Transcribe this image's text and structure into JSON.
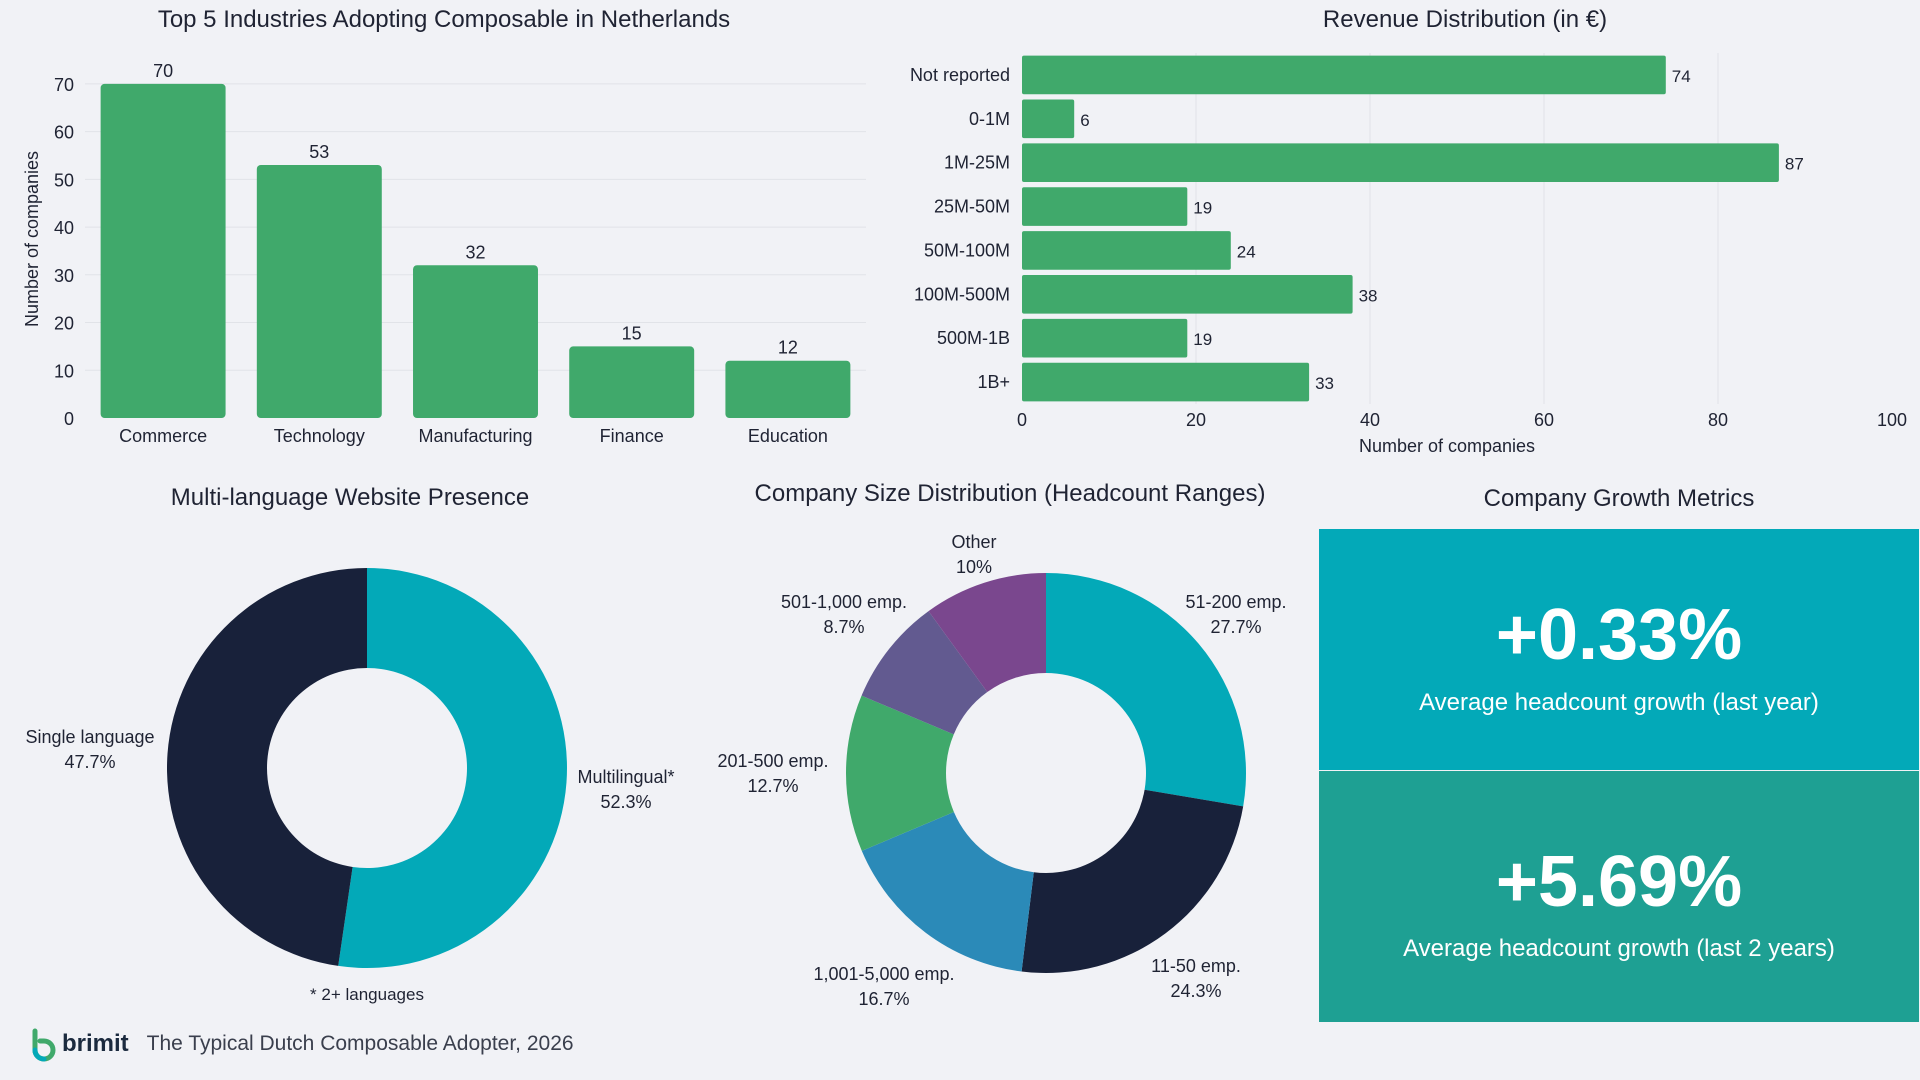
{
  "colors": {
    "green": "#40a96b",
    "teal": "#03a9b8",
    "navy": "#18213a",
    "blue": "#2b8ab8",
    "purple": "#7a478e",
    "indigo": "#625a90",
    "teal_dark": "#1ea093",
    "grid": "#e1e3e8"
  },
  "chart_data": [
    {
      "type": "bar",
      "title": "Top 5 Industries Adopting Composable in Netherlands",
      "categories": [
        "Commerce",
        "Technology",
        "Manufacturing",
        "Finance",
        "Education"
      ],
      "values": [
        70,
        53,
        32,
        15,
        12
      ],
      "ylabel": "Number of companies",
      "xlabel": "",
      "ylim": [
        0,
        75
      ],
      "yticks": [
        0,
        10,
        20,
        30,
        40,
        50,
        60,
        70
      ],
      "grid": true
    },
    {
      "type": "bar",
      "orientation": "horizontal",
      "title": "Revenue Distribution (in €)",
      "categories": [
        "Not reported",
        "0-1M",
        "1M-25M",
        "25M-50M",
        "50M-100M",
        "100M-500M",
        "500M-1B",
        "1B+"
      ],
      "values": [
        74,
        6,
        87,
        19,
        24,
        38,
        19,
        33
      ],
      "xlabel": "Number of companies",
      "xlim": [
        0,
        100
      ],
      "xticks": [
        0,
        20,
        40,
        60,
        80,
        100
      ],
      "grid": true
    },
    {
      "type": "pie",
      "donut": true,
      "title": "Multi-language Website Presence",
      "slices": [
        {
          "label": "Multilingual*",
          "pct_label": "52.3%",
          "value": 52.3,
          "color": "#03a9b8"
        },
        {
          "label": "Single language",
          "pct_label": "47.7%",
          "value": 47.7,
          "color": "#18213a"
        }
      ],
      "note": "* 2+ languages"
    },
    {
      "type": "pie",
      "donut": true,
      "title": "Company Size Distribution (Headcount Ranges)",
      "slices": [
        {
          "label": "51-200 emp.",
          "pct_label": "27.7%",
          "value": 27.7,
          "color": "#03a9b8"
        },
        {
          "label": "11-50 emp.",
          "pct_label": "24.3%",
          "value": 24.3,
          "color": "#18213a"
        },
        {
          "label": "1,001-5,000 emp.",
          "pct_label": "16.7%",
          "value": 16.7,
          "color": "#2b8ab8"
        },
        {
          "label": "201-500 emp.",
          "pct_label": "12.7%",
          "value": 12.7,
          "color": "#40a96b"
        },
        {
          "label": "501-1,000 emp.",
          "pct_label": "8.7%",
          "value": 8.7,
          "color": "#625a90"
        },
        {
          "label": "Other",
          "pct_label": "10%",
          "value": 10,
          "color": "#7a478e"
        }
      ]
    }
  ],
  "growth": {
    "title": "Company Growth Metrics",
    "metrics": [
      {
        "value": "+0.33%",
        "label": "Average headcount growth (last year)"
      },
      {
        "value": "+5.69%",
        "label": "Average headcount growth (last 2 years)"
      }
    ]
  },
  "footer": {
    "brand": "brimit",
    "caption": "The Typical Dutch Composable Adopter, 2026"
  }
}
